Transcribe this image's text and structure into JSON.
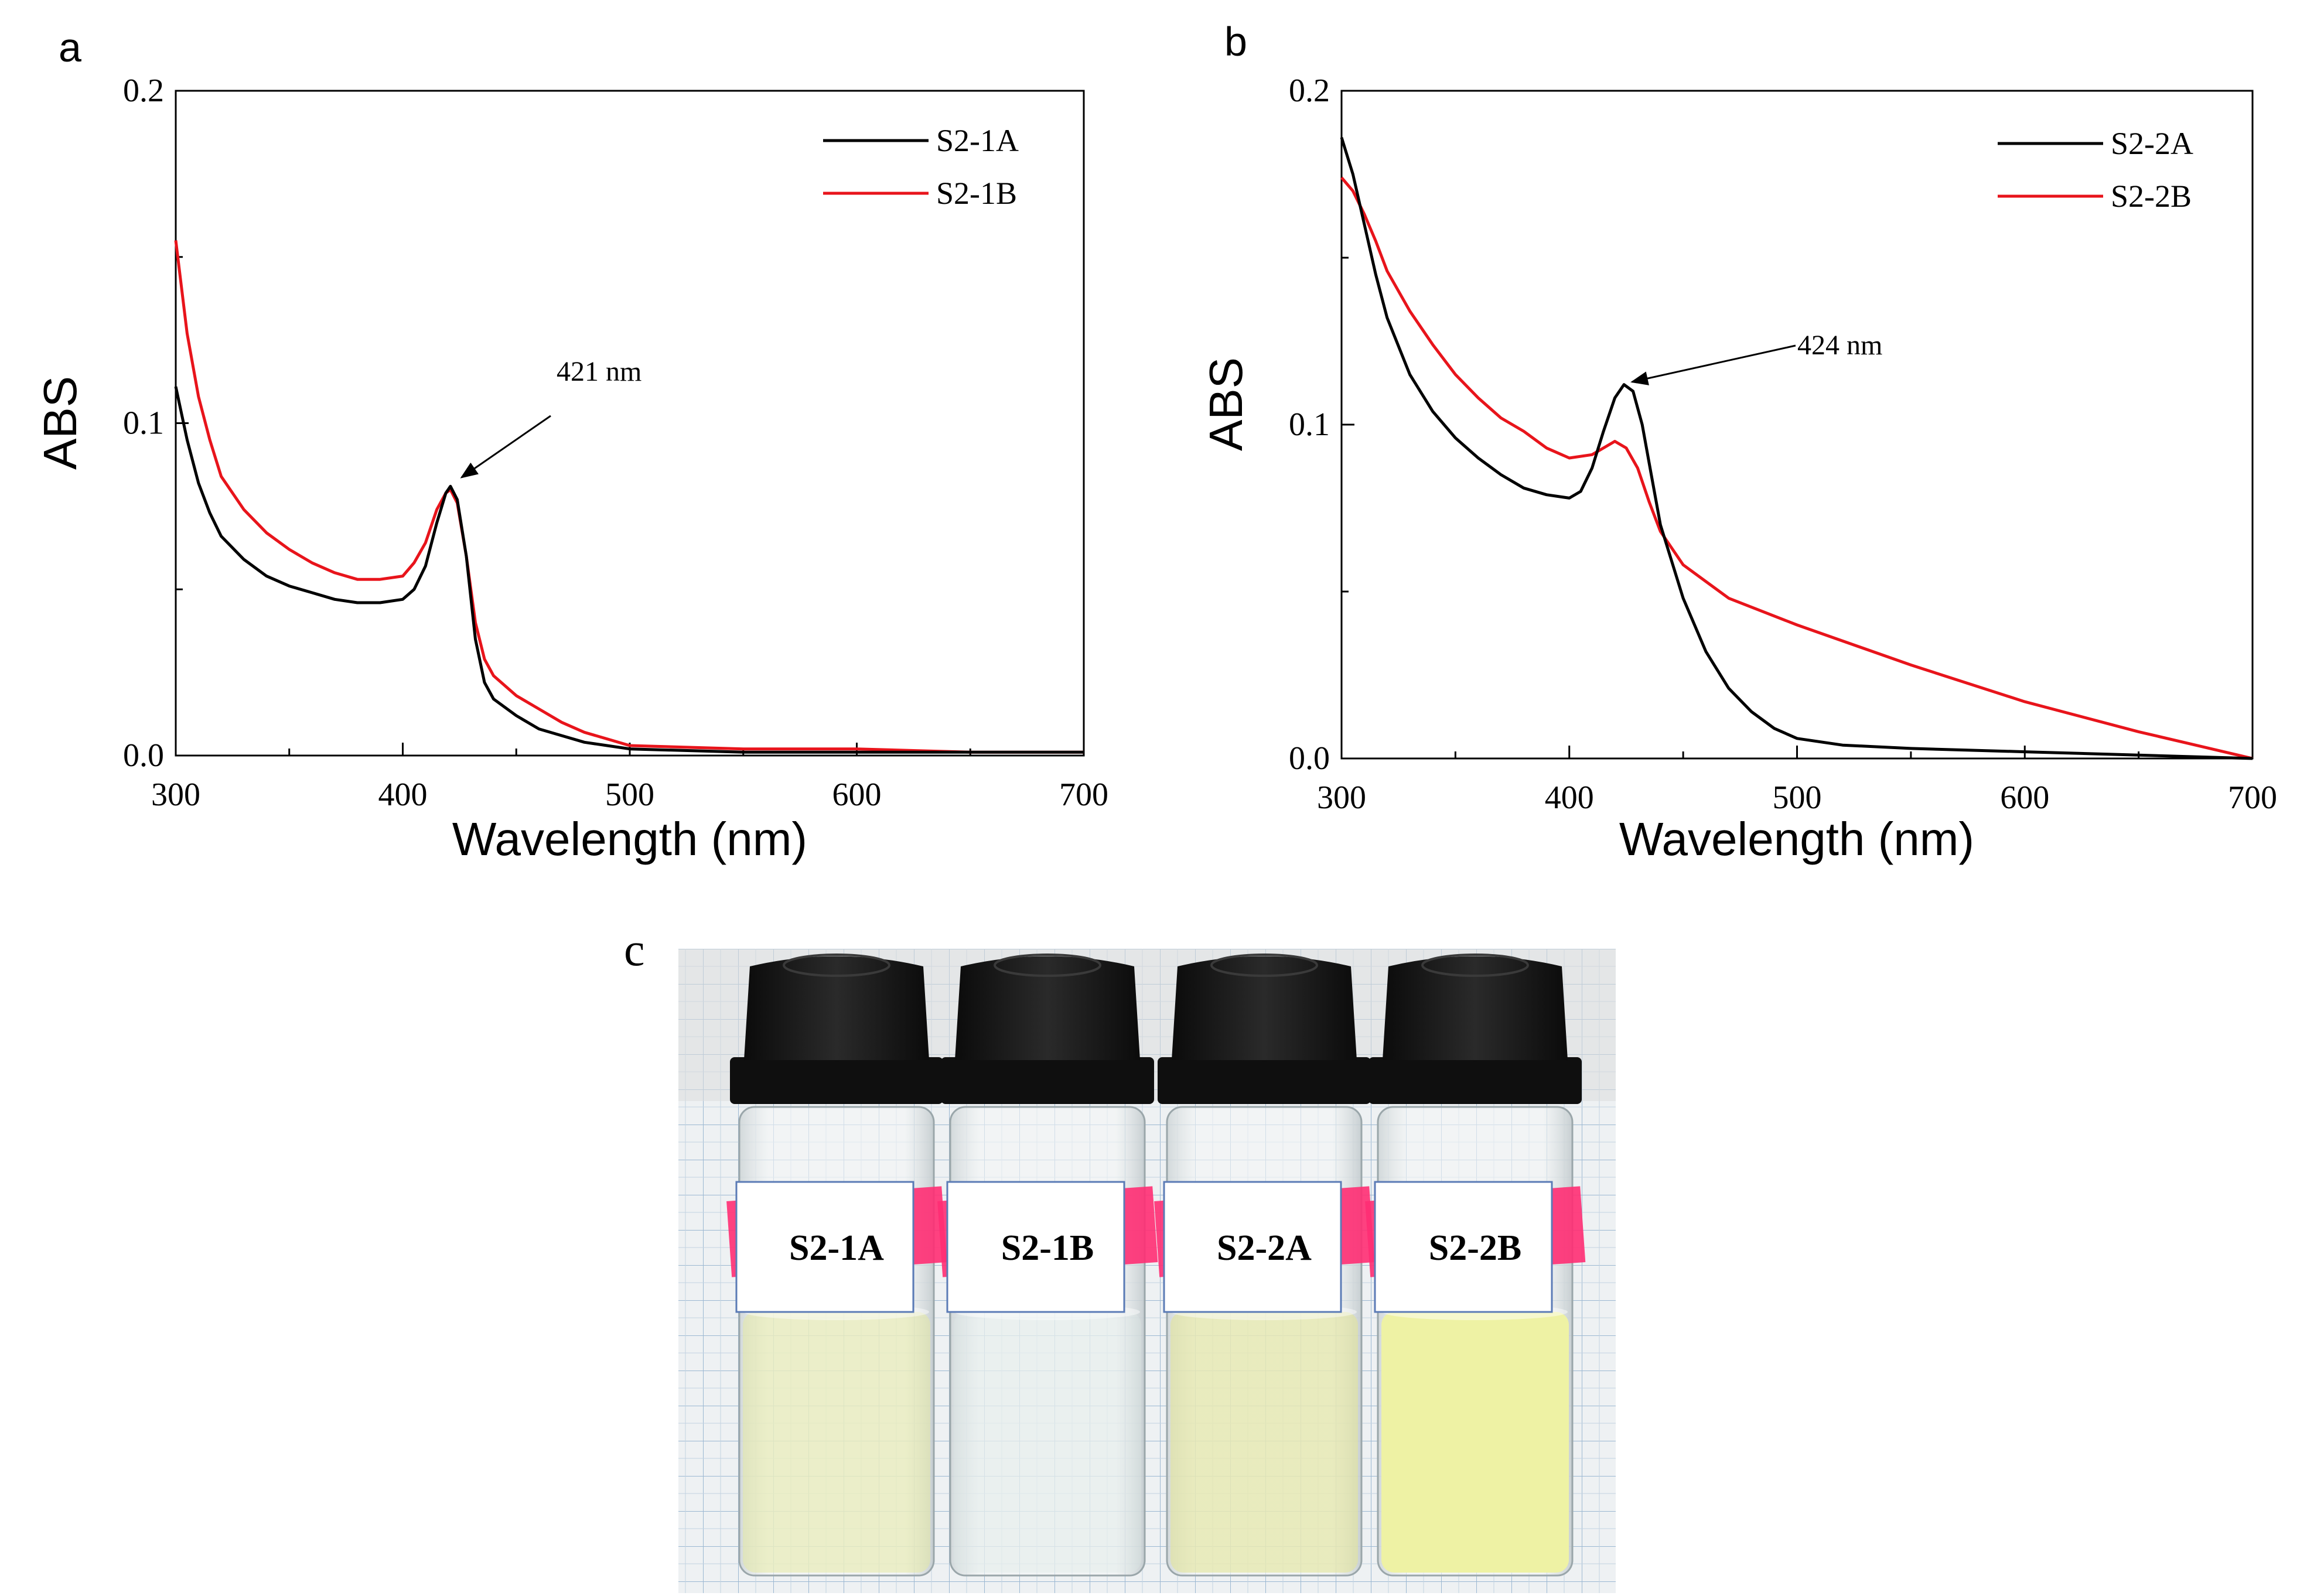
{
  "panels": {
    "a": "a",
    "b": "b",
    "c": "c"
  },
  "colors": {
    "series_black": "#000000",
    "series_red": "#e8141b",
    "label_pink": "#ff2d73",
    "cap": "#161616",
    "grid_line": "#9cb8d2"
  },
  "chart_data": [
    {
      "panel": "a",
      "type": "line",
      "xlabel": "Wavelength (nm)",
      "ylabel": "ABS",
      "xlim": [
        300,
        700
      ],
      "ylim": [
        0,
        0.2
      ],
      "xticks": [
        "300",
        "400",
        "500",
        "600",
        "700"
      ],
      "yticks": [
        "0.0",
        "0.1",
        "0.2"
      ],
      "legend_position": "top-right",
      "annotation": {
        "text": "421 nm",
        "x": 421,
        "y": 0.081
      },
      "series": [
        {
          "name": "S2-1A",
          "color": "#000000",
          "points": [
            [
              300,
              0.111
            ],
            [
              305,
              0.095
            ],
            [
              310,
              0.082
            ],
            [
              315,
              0.073
            ],
            [
              320,
              0.066
            ],
            [
              330,
              0.059
            ],
            [
              340,
              0.054
            ],
            [
              350,
              0.051
            ],
            [
              360,
              0.049
            ],
            [
              370,
              0.047
            ],
            [
              380,
              0.046
            ],
            [
              390,
              0.046
            ],
            [
              400,
              0.047
            ],
            [
              405,
              0.05
            ],
            [
              410,
              0.057
            ],
            [
              415,
              0.07
            ],
            [
              419,
              0.079
            ],
            [
              421,
              0.081
            ],
            [
              424,
              0.077
            ],
            [
              428,
              0.06
            ],
            [
              432,
              0.035
            ],
            [
              436,
              0.022
            ],
            [
              440,
              0.017
            ],
            [
              450,
              0.012
            ],
            [
              460,
              0.008
            ],
            [
              470,
              0.006
            ],
            [
              480,
              0.004
            ],
            [
              490,
              0.003
            ],
            [
              500,
              0.002
            ],
            [
              550,
              0.001
            ],
            [
              600,
              0.001
            ],
            [
              650,
              0.001
            ],
            [
              700,
              0.001
            ]
          ]
        },
        {
          "name": "S2-1B",
          "color": "#e8141b",
          "points": [
            [
              300,
              0.155
            ],
            [
              305,
              0.127
            ],
            [
              310,
              0.108
            ],
            [
              315,
              0.095
            ],
            [
              320,
              0.084
            ],
            [
              330,
              0.074
            ],
            [
              340,
              0.067
            ],
            [
              350,
              0.062
            ],
            [
              360,
              0.058
            ],
            [
              370,
              0.055
            ],
            [
              380,
              0.053
            ],
            [
              390,
              0.053
            ],
            [
              400,
              0.054
            ],
            [
              405,
              0.058
            ],
            [
              410,
              0.064
            ],
            [
              415,
              0.074
            ],
            [
              419,
              0.079
            ],
            [
              421,
              0.08
            ],
            [
              424,
              0.076
            ],
            [
              428,
              0.06
            ],
            [
              432,
              0.04
            ],
            [
              436,
              0.029
            ],
            [
              440,
              0.024
            ],
            [
              450,
              0.018
            ],
            [
              460,
              0.014
            ],
            [
              470,
              0.01
            ],
            [
              480,
              0.007
            ],
            [
              490,
              0.005
            ],
            [
              500,
              0.003
            ],
            [
              550,
              0.002
            ],
            [
              600,
              0.002
            ],
            [
              650,
              0.001
            ],
            [
              700,
              0.001
            ]
          ]
        }
      ]
    },
    {
      "panel": "b",
      "type": "line",
      "xlabel": "Wavelength (nm)",
      "ylabel": "ABS",
      "xlim": [
        300,
        700
      ],
      "ylim": [
        0,
        0.2
      ],
      "xticks": [
        "300",
        "400",
        "500",
        "600",
        "700"
      ],
      "yticks": [
        "0.0",
        "0.1",
        "0.2"
      ],
      "legend_position": "top-right",
      "annotation": {
        "text": "424 nm",
        "x": 424,
        "y": 0.112
      },
      "series": [
        {
          "name": "S2-2A",
          "color": "#000000",
          "points": [
            [
              300,
              0.186
            ],
            [
              305,
              0.175
            ],
            [
              310,
              0.16
            ],
            [
              315,
              0.145
            ],
            [
              320,
              0.132
            ],
            [
              330,
              0.115
            ],
            [
              340,
              0.104
            ],
            [
              350,
              0.096
            ],
            [
              360,
              0.09
            ],
            [
              370,
              0.085
            ],
            [
              380,
              0.081
            ],
            [
              390,
              0.079
            ],
            [
              400,
              0.078
            ],
            [
              405,
              0.08
            ],
            [
              410,
              0.087
            ],
            [
              415,
              0.098
            ],
            [
              420,
              0.108
            ],
            [
              424,
              0.112
            ],
            [
              428,
              0.11
            ],
            [
              432,
              0.1
            ],
            [
              436,
              0.085
            ],
            [
              440,
              0.07
            ],
            [
              450,
              0.048
            ],
            [
              460,
              0.032
            ],
            [
              470,
              0.021
            ],
            [
              480,
              0.014
            ],
            [
              490,
              0.009
            ],
            [
              500,
              0.006
            ],
            [
              520,
              0.004
            ],
            [
              550,
              0.003
            ],
            [
              600,
              0.002
            ],
            [
              650,
              0.001
            ],
            [
              700,
              0.0
            ]
          ]
        },
        {
          "name": "S2-2B",
          "color": "#e8141b",
          "points": [
            [
              300,
              0.174
            ],
            [
              305,
              0.17
            ],
            [
              310,
              0.163
            ],
            [
              315,
              0.155
            ],
            [
              320,
              0.146
            ],
            [
              330,
              0.134
            ],
            [
              340,
              0.124
            ],
            [
              350,
              0.115
            ],
            [
              360,
              0.108
            ],
            [
              370,
              0.102
            ],
            [
              380,
              0.098
            ],
            [
              390,
              0.093
            ],
            [
              400,
              0.09
            ],
            [
              410,
              0.091
            ],
            [
              415,
              0.093
            ],
            [
              420,
              0.095
            ],
            [
              425,
              0.093
            ],
            [
              430,
              0.087
            ],
            [
              435,
              0.077
            ],
            [
              440,
              0.068
            ],
            [
              450,
              0.058
            ],
            [
              470,
              0.048
            ],
            [
              500,
              0.04
            ],
            [
              550,
              0.028
            ],
            [
              600,
              0.017
            ],
            [
              650,
              0.008
            ],
            [
              700,
              0.0
            ]
          ]
        }
      ]
    }
  ],
  "photo": {
    "vials": [
      {
        "label": "S2-1A",
        "liquid_color": "#e6e9a4",
        "liquid_opacity": 0.55
      },
      {
        "label": "S2-1B",
        "liquid_color": "#dde8e6",
        "liquid_opacity": 0.35
      },
      {
        "label": "S2-2A",
        "liquid_color": "#e3e59a",
        "liquid_opacity": 0.6
      },
      {
        "label": "S2-2B",
        "liquid_color": "#eef2a4",
        "liquid_opacity": 1.0
      }
    ]
  }
}
